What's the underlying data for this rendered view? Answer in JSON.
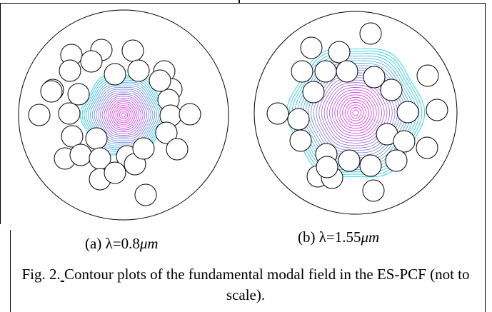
{
  "subfigures": [
    {
      "label": "(a) λ=0.8",
      "unit": "μm",
      "wavelength_um": 0.8
    },
    {
      "label": "(b) λ=1.55",
      "unit": "μm",
      "wavelength_um": 1.55
    }
  ],
  "caption": {
    "prefix": "Fig. 2.",
    "text": "Contour plots of the fundamental modal field in the ES-PCF (not to scale)."
  },
  "colors": {
    "fiber_outline": "#000000",
    "contour_outer": "#22d3e6",
    "contour_inner": "#e040e0",
    "frame": "#000000"
  }
}
